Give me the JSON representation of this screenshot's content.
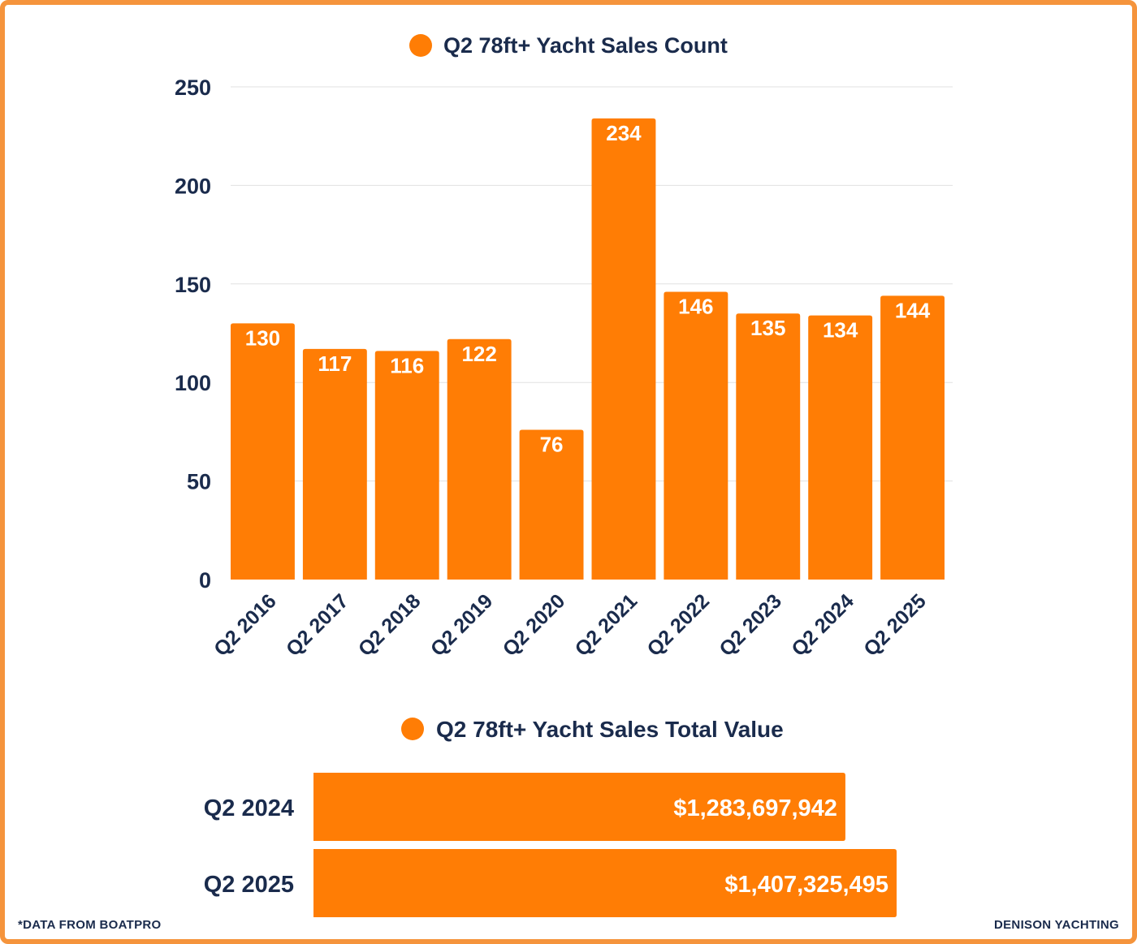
{
  "colors": {
    "bar": "#ff7d05",
    "text": "#1a2b4c",
    "grid": "#e1e1e1",
    "border": "#f5943c",
    "bar_label": "#ffffff"
  },
  "chart_data": [
    {
      "type": "bar",
      "title": "Q2 78ft+ Yacht Sales Count",
      "categories": [
        "Q2 2016",
        "Q2 2017",
        "Q2 2018",
        "Q2 2019",
        "Q2 2020",
        "Q2 2021",
        "Q2 2022",
        "Q2 2023",
        "Q2 2024",
        "Q2 2025"
      ],
      "values": [
        130,
        117,
        116,
        122,
        76,
        234,
        146,
        135,
        134,
        144
      ],
      "ylim": [
        0,
        250
      ],
      "yticks": [
        0,
        50,
        100,
        150,
        200,
        250
      ],
      "grid": true,
      "legend": "top-center"
    },
    {
      "type": "bar",
      "orientation": "horizontal",
      "title": "Q2 78ft+ Yacht Sales Total Value",
      "categories": [
        "Q2 2024",
        "Q2 2025"
      ],
      "values": [
        1283697942,
        1407325495
      ],
      "value_labels": [
        "$1,283,697,942",
        "$1,407,325,495"
      ],
      "legend": "top-center"
    }
  ],
  "footer": {
    "source": "*DATA FROM BOATPRO",
    "brand": "DENISON YACHTING"
  }
}
